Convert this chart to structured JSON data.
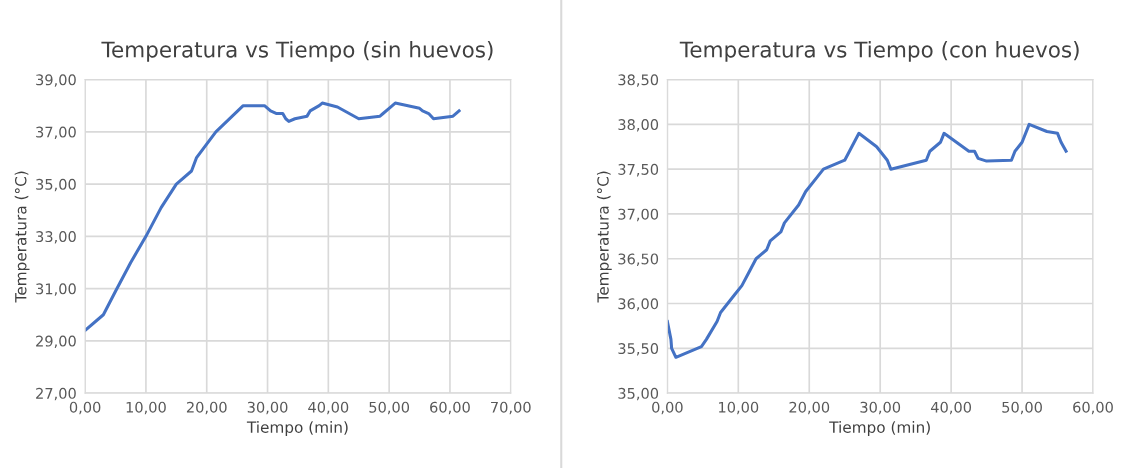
{
  "chart_data": [
    {
      "type": "line",
      "title": "Temperatura vs Tiempo (sin huevos)",
      "xlabel": "Tiempo (min)",
      "ylabel": "Temperatura (°C)",
      "grid": true,
      "legend": false,
      "marker": "none",
      "line_style": "solid",
      "xlim": [
        0,
        70
      ],
      "ylim": [
        27,
        39
      ],
      "xticks": [
        {
          "value": 0,
          "label": "0,00"
        },
        {
          "value": 10,
          "label": "10,00"
        },
        {
          "value": 20,
          "label": "20,00"
        },
        {
          "value": 30,
          "label": "30,00"
        },
        {
          "value": 40,
          "label": "40,00"
        },
        {
          "value": 50,
          "label": "50,00"
        },
        {
          "value": 60,
          "label": "60,00"
        },
        {
          "value": 70,
          "label": "70,00"
        }
      ],
      "yticks": [
        {
          "value": 27,
          "label": "27,00"
        },
        {
          "value": 29,
          "label": "29,00"
        },
        {
          "value": 31,
          "label": "31,00"
        },
        {
          "value": 33,
          "label": "33,00"
        },
        {
          "value": 35,
          "label": "35,00"
        },
        {
          "value": 37,
          "label": "37,00"
        },
        {
          "value": 39,
          "label": "39,00"
        }
      ],
      "series": [
        {
          "color": "#4472c4",
          "x": [
            0,
            3,
            5,
            7.5,
            10,
            12.5,
            15,
            17.5,
            18.3,
            21.5,
            26,
            29.5,
            30.5,
            31.5,
            32.5,
            33,
            33.5,
            34.5,
            36.5,
            37,
            38.5,
            39,
            41.5,
            45,
            48.5,
            49,
            50,
            51,
            55,
            55.5,
            56.5,
            57.3,
            60.5,
            61.5
          ],
          "values": [
            29.4,
            30,
            30.9,
            32,
            33,
            34.1,
            35,
            35.5,
            36,
            37,
            38,
            38,
            37.8,
            37.7,
            37.7,
            37.5,
            37.4,
            37.5,
            37.6,
            37.8,
            38,
            38.1,
            37.95,
            37.5,
            37.6,
            37.7,
            37.9,
            38.1,
            37.9,
            37.8,
            37.7,
            37.5,
            37.6,
            37.8
          ]
        }
      ]
    },
    {
      "type": "line",
      "title": "Temperatura vs Tiempo (con huevos)",
      "xlabel": "Tiempo (min)",
      "ylabel": "Temperatura (°C)",
      "grid": true,
      "legend": false,
      "marker": "none",
      "line_style": "solid",
      "xlim": [
        0,
        60
      ],
      "ylim": [
        35,
        38.5
      ],
      "xticks": [
        {
          "value": 0,
          "label": "0,00"
        },
        {
          "value": 10,
          "label": "10,00"
        },
        {
          "value": 20,
          "label": "20,00"
        },
        {
          "value": 30,
          "label": "30,00"
        },
        {
          "value": 40,
          "label": "40,00"
        },
        {
          "value": 50,
          "label": "50,00"
        },
        {
          "value": 60,
          "label": "60,00"
        }
      ],
      "yticks": [
        {
          "value": 35,
          "label": "35,00"
        },
        {
          "value": 35.5,
          "label": "35,50"
        },
        {
          "value": 36,
          "label": "36,00"
        },
        {
          "value": 36.5,
          "label": "36,50"
        },
        {
          "value": 37,
          "label": "37,00"
        },
        {
          "value": 37.5,
          "label": "37,50"
        },
        {
          "value": 38,
          "label": "38,00"
        },
        {
          "value": 38.5,
          "label": "38,50"
        }
      ],
      "series": [
        {
          "color": "#4472c4",
          "x": [
            0,
            0.5,
            0.6,
            1.2,
            4.8,
            5.5,
            7,
            7.5,
            9.5,
            10.5,
            11.5,
            12.5,
            14,
            14.5,
            16,
            16.5,
            18.5,
            19.5,
            21,
            22,
            25,
            27,
            29.5,
            31,
            31.5,
            36.5,
            37,
            38.5,
            39,
            42.5,
            43.3,
            43.8,
            45,
            48.5,
            49,
            50,
            51,
            53.5,
            55,
            55.5,
            56.2
          ],
          "values": [
            35.8,
            35.6,
            35.5,
            35.4,
            35.52,
            35.6,
            35.8,
            35.9,
            36.1,
            36.2,
            36.35,
            36.5,
            36.6,
            36.7,
            36.8,
            36.9,
            37.1,
            37.25,
            37.4,
            37.5,
            37.6,
            37.9,
            37.75,
            37.6,
            37.5,
            37.6,
            37.7,
            37.8,
            37.9,
            37.7,
            37.7,
            37.62,
            37.59,
            37.6,
            37.7,
            37.8,
            38,
            37.92,
            37.9,
            37.8,
            37.7
          ]
        }
      ]
    }
  ]
}
